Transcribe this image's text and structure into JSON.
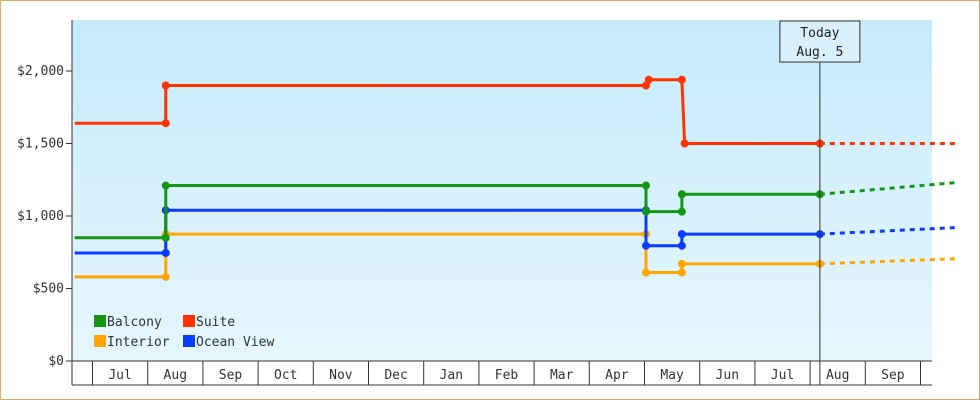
{
  "chart_data": {
    "type": "line",
    "step": true,
    "y_tick_labels": [
      "$0",
      "$500",
      "$1,000",
      "$1,500",
      "$2,000"
    ],
    "y_ticks": [
      0,
      500,
      1000,
      1500,
      2000
    ],
    "ylim": [
      0,
      2350
    ],
    "x_months": [
      "Jul",
      "Aug",
      "Sep",
      "Oct",
      "Nov",
      "Dec",
      "Jan",
      "Feb",
      "Mar",
      "Apr",
      "May",
      "Jun",
      "Jul",
      "Aug",
      "Sep"
    ],
    "today": {
      "line1": "Today",
      "line2": "Aug. 5",
      "month_pos": 13.15
    },
    "legend_position": "bottom-left",
    "series": [
      {
        "name": "Suite",
        "color": "#ff3300",
        "points": [
          [
            -0.35,
            1640
          ],
          [
            1.3,
            1640
          ],
          [
            1.3,
            1900
          ],
          [
            10.0,
            1900
          ],
          [
            10.05,
            1940
          ],
          [
            10.65,
            1940
          ],
          [
            10.7,
            1500
          ],
          [
            13.15,
            1500
          ]
        ],
        "forecast": [
          [
            13.15,
            1500
          ],
          [
            15.6,
            1500
          ]
        ]
      },
      {
        "name": "Balcony",
        "color": "#149614",
        "points": [
          [
            -0.35,
            850
          ],
          [
            1.3,
            850
          ],
          [
            1.3,
            1210
          ],
          [
            10.0,
            1210
          ],
          [
            10.0,
            1030
          ],
          [
            10.65,
            1030
          ],
          [
            10.65,
            1150
          ],
          [
            13.15,
            1150
          ]
        ],
        "forecast": [
          [
            13.15,
            1150
          ],
          [
            15.6,
            1230
          ]
        ]
      },
      {
        "name": "Ocean View",
        "color": "#0a3cff",
        "points": [
          [
            -0.35,
            745
          ],
          [
            1.3,
            745
          ],
          [
            1.3,
            1040
          ],
          [
            10.0,
            1040
          ],
          [
            10.0,
            795
          ],
          [
            10.65,
            795
          ],
          [
            10.65,
            875
          ],
          [
            13.15,
            875
          ]
        ],
        "forecast": [
          [
            13.15,
            875
          ],
          [
            15.6,
            920
          ]
        ]
      },
      {
        "name": "Interior",
        "color": "#ffa500",
        "points": [
          [
            -0.35,
            580
          ],
          [
            1.3,
            580
          ],
          [
            1.3,
            875
          ],
          [
            10.0,
            875
          ],
          [
            10.0,
            610
          ],
          [
            10.65,
            610
          ],
          [
            10.65,
            670
          ],
          [
            13.15,
            670
          ]
        ],
        "forecast": [
          [
            13.15,
            670
          ],
          [
            15.6,
            705
          ]
        ]
      }
    ],
    "legend": [
      "Balcony",
      "Suite",
      "Interior",
      "Ocean View"
    ]
  }
}
